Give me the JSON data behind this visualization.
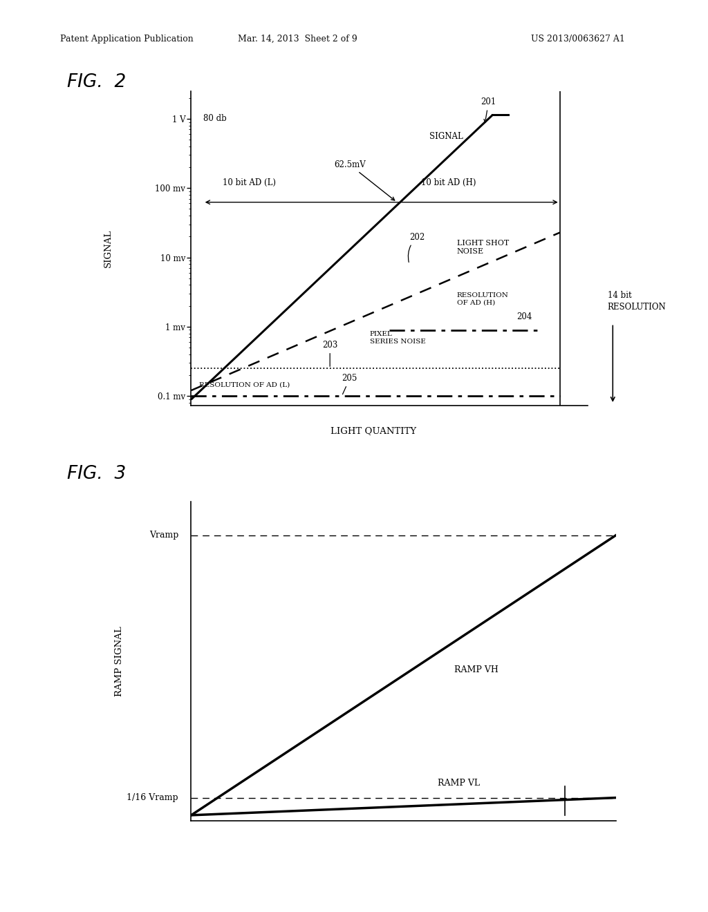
{
  "bg_color": "#ffffff",
  "header_left": "Patent Application Publication",
  "header_mid": "Mar. 14, 2013  Sheet 2 of 9",
  "header_right": "US 2013/0063627 A1",
  "fig2_title": "FIG.  2",
  "fig3_title": "FIG.  3",
  "fig2_ylabel": "SIGNAL",
  "fig2_xlabel": "LIGHT QUANTITY",
  "fig3_ylabel": "RAMP SIGNAL",
  "ytick_labels": [
    "0.1 mv",
    "1 mv",
    "10 mv",
    "100 mv",
    "1 V"
  ],
  "ytick_values": [
    0.1,
    1,
    10,
    100,
    1000
  ],
  "annotation_80db": "80 db",
  "annotation_62_5mv": "62.5mV",
  "annotation_10bit_L": "10 bit AD (L)",
  "annotation_10bit_H": "10 bit AD (H)",
  "annotation_201": "201",
  "annotation_signal": "SIGNAL",
  "annotation_202": "202",
  "annotation_light_shot": "LIGHT SHOT\nNOISE",
  "annotation_resolution_H": "RESOLUTION\nOF AD (H)",
  "annotation_203": "203",
  "annotation_pixel_series": "PIXEL\nSERIES NOISE",
  "annotation_204": "204",
  "annotation_205": "205",
  "annotation_resolution_L": "RESOLUTION OF AD (L)",
  "annotation_14bit": "14 bit\nRESOLUTION",
  "fig3_vramp": "Vramp",
  "fig3_vramp16": "1/16 Vramp",
  "fig3_ramp_vh": "RAMP VH",
  "fig3_ramp_vl": "RAMP VL"
}
